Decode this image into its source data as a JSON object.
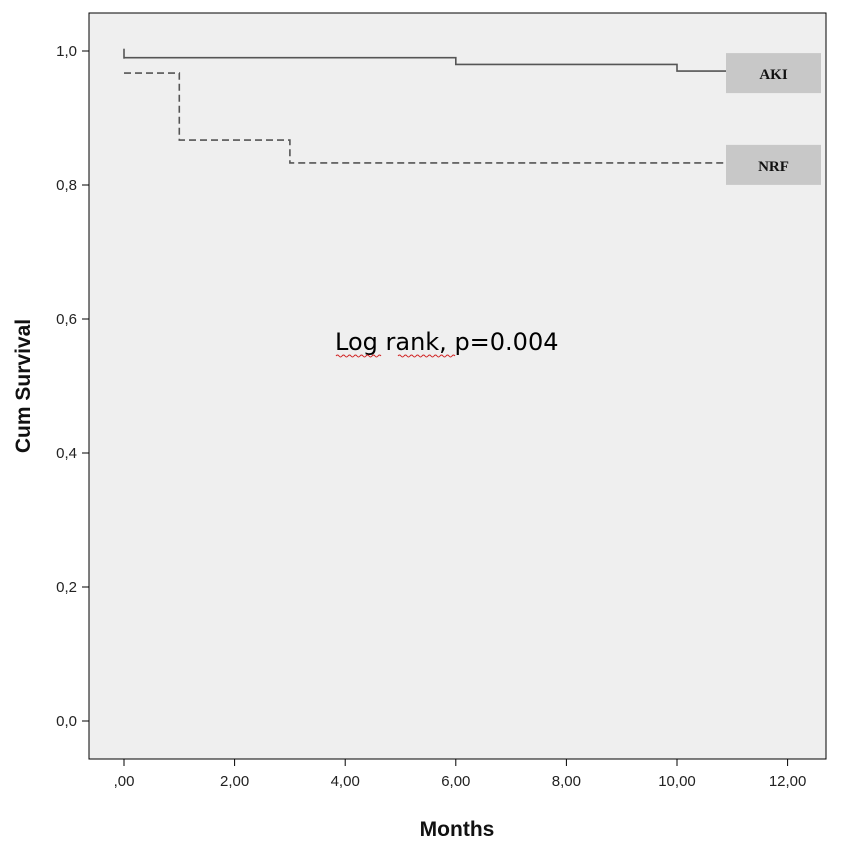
{
  "chart_data": {
    "type": "line",
    "subtype": "kaplan-meier step",
    "xlabel": "Months",
    "ylabel": "Cum Survival",
    "xlim": [
      -0.6,
      12.6
    ],
    "ylim": [
      -0.05,
      1.06
    ],
    "x_ticks": [
      0,
      2,
      4,
      6,
      8,
      10,
      12
    ],
    "x_tick_labels": [
      ",00",
      "2,00",
      "4,00",
      "6,00",
      "8,00",
      "10,00",
      "12,00"
    ],
    "y_ticks": [
      0,
      0.2,
      0.4,
      0.6,
      0.8,
      1.0
    ],
    "y_tick_labels": [
      "0,0",
      "0,2",
      "0,4",
      "0,6",
      "0,8",
      "1,0"
    ],
    "grid": false,
    "background": "#efefef",
    "annotation": "Log rank, p=0.004",
    "series": [
      {
        "name": "AKI",
        "style": "solid",
        "color": "#555555",
        "x": [
          0,
          6,
          10,
          11
        ],
        "y": [
          0.99,
          0.98,
          0.97,
          0.97
        ],
        "censor_x": [
          0
        ],
        "censor_y": [
          1.0
        ]
      },
      {
        "name": "NRF",
        "style": "dashed",
        "color": "#555555",
        "x": [
          0,
          1,
          3,
          11
        ],
        "y": [
          0.967,
          0.867,
          0.833,
          0.833
        ]
      }
    ],
    "legend_placement": "right, at line ends",
    "legend_box_color": "#c8c8c8"
  }
}
